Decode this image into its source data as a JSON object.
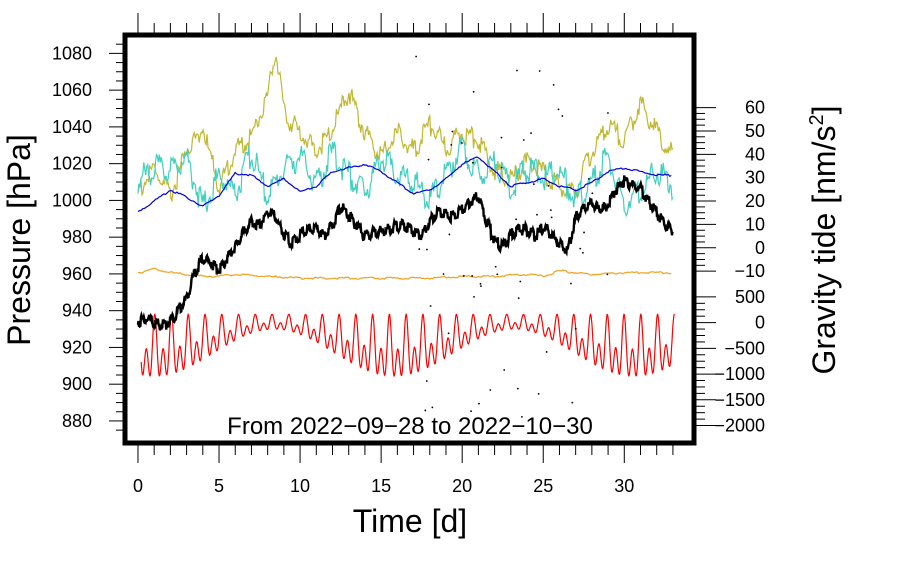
{
  "chart_data": {
    "type": "line",
    "title": "",
    "annotation": "From 2022−09−28 to 2022−10−30",
    "xlabel": "Time [d]",
    "ylabel_left": "Pressure [hPa]",
    "ylabel_right_main": "Gravity tide [nm/s",
    "ylabel_right_sup": "2",
    "ylabel_right_end": "]",
    "xlim": [
      -0.8,
      34.3
    ],
    "ylim_left": [
      868,
      1090
    ],
    "x_ticks": [
      0,
      5,
      10,
      15,
      20,
      25,
      30
    ],
    "x_tick_labels": [
      "0",
      "5",
      "10",
      "15",
      "20",
      "25",
      "30"
    ],
    "left_ticks": [
      880,
      900,
      920,
      940,
      960,
      980,
      1000,
      1020,
      1040,
      1060,
      1080
    ],
    "left_tick_labels": [
      "880",
      "900",
      "920",
      "940",
      "960",
      "980",
      "1000",
      "1020",
      "1040",
      "1060",
      "1080"
    ],
    "right_upper_scale": {
      "range": [
        -10,
        60
      ],
      "pressure_equivalent": [
        961.5,
        1050.5
      ],
      "ticks": [
        -10,
        0,
        10,
        20,
        30,
        40,
        50,
        60
      ],
      "tick_labels": [
        "−10",
        "0",
        "10",
        "20",
        "30",
        "40",
        "50",
        "60"
      ]
    },
    "right_lower_scale": {
      "range": [
        -2000,
        500
      ],
      "pressure_equivalent": [
        877.5,
        947.5
      ],
      "ticks": [
        -2000,
        -1500,
        -1000,
        -500,
        0,
        500
      ],
      "tick_labels": [
        "−2000",
        "−1500",
        "−1000",
        "−500",
        "0",
        "500"
      ]
    },
    "series": [
      {
        "name": "pressure",
        "color": "#000000",
        "axis": "left",
        "x": [
          0,
          0.5,
          1,
          1.5,
          2,
          2.5,
          3,
          3.5,
          4,
          4.5,
          5,
          5.5,
          6,
          6.5,
          7,
          7.5,
          8,
          8.5,
          9,
          9.5,
          10,
          10.5,
          11,
          11.5,
          12,
          12.5,
          13,
          13.5,
          14,
          14.5,
          15,
          15.5,
          16,
          16.5,
          17,
          17.5,
          18,
          18.5,
          19,
          19.5,
          20,
          20.5,
          21,
          21.5,
          22,
          22.5,
          23,
          23.5,
          24,
          24.5,
          25,
          25.5,
          26,
          26.5,
          27,
          27.5,
          28,
          28.5,
          29,
          29.5,
          30,
          30.5,
          31,
          31.5,
          32,
          32.5,
          33
        ],
        "values": [
          936,
          937,
          935,
          933,
          936,
          942,
          948,
          962,
          970,
          968,
          963,
          970,
          976,
          984,
          990,
          988,
          996,
          992,
          983,
          978,
          983,
          986,
          986,
          982,
          988,
          998,
          994,
          988,
          982,
          984,
          985,
          986,
          988,
          988,
          984,
          983,
          990,
          996,
          994,
          992,
          997,
          1001,
          1004,
          990,
          980,
          976,
          983,
          985,
          986,
          982,
          987,
          983,
          978,
          974,
          992,
          997,
          1000,
          996,
          999,
          1008,
          1012,
          1010,
          1008,
          1001,
          995,
          988,
          985
        ]
      },
      {
        "name": "gravity-blue",
        "color": "#0000dd",
        "axis": "left",
        "x": [
          0,
          1,
          2,
          3,
          4,
          5,
          6,
          7,
          8,
          9,
          10,
          11,
          12,
          13,
          14,
          15,
          16,
          17,
          18,
          19,
          20,
          21,
          22,
          23,
          24,
          25,
          26,
          27,
          28,
          29,
          30,
          31,
          32,
          33
        ],
        "values": [
          994,
          1000,
          1006,
          1002,
          997,
          1003,
          1015,
          1014,
          1008,
          1012,
          1005,
          1008,
          1016,
          1018,
          1020,
          1016,
          1010,
          1004,
          1006,
          1012,
          1020,
          1024,
          1016,
          1008,
          1010,
          1012,
          1008,
          1006,
          1010,
          1016,
          1018,
          1016,
          1014,
          1014
        ]
      },
      {
        "name": "cyan",
        "color": "#40d0c0",
        "axis": "left",
        "x": [
          0,
          1,
          2,
          3,
          4,
          5,
          6,
          7,
          8,
          9,
          10,
          11,
          12,
          13,
          14,
          15,
          16,
          17,
          18,
          19,
          20,
          21,
          22,
          23,
          24,
          25,
          26,
          27,
          28,
          29,
          30,
          31,
          32,
          33
        ],
        "values": [
          1014,
          1022,
          1020,
          1028,
          1000,
          1018,
          1008,
          1030,
          1006,
          1022,
          1028,
          1012,
          1030,
          1018,
          1008,
          1028,
          1018,
          1014,
          1004,
          1018,
          1034,
          1018,
          1026,
          1010,
          1022,
          1016,
          1020,
          1004,
          1014,
          1028,
          1002,
          1010,
          1020,
          1012
        ]
      },
      {
        "name": "olive",
        "color": "#c0b830",
        "axis": "left",
        "x": [
          0,
          1,
          2,
          3,
          4,
          5,
          6,
          7,
          8,
          8.5,
          9,
          10,
          11,
          12,
          13,
          14,
          15,
          16,
          17,
          18,
          19,
          20,
          21,
          22,
          23,
          24,
          25,
          26,
          27,
          28,
          29,
          30,
          31,
          32,
          33
        ],
        "values": [
          1008,
          1020,
          1005,
          1030,
          1042,
          1010,
          1030,
          1038,
          1060,
          1086,
          1050,
          1040,
          1030,
          1042,
          1062,
          1040,
          1026,
          1040,
          1030,
          1044,
          1032,
          1040,
          1036,
          1020,
          1014,
          1024,
          1018,
          1010,
          1008,
          1030,
          1044,
          1036,
          1056,
          1040,
          1028
        ]
      },
      {
        "name": "orange",
        "color": "#f0a020",
        "axis": "left",
        "x": [
          0,
          1,
          2,
          3,
          4,
          5,
          6,
          8,
          10,
          12,
          14,
          16,
          18,
          20,
          22,
          24,
          25,
          26,
          28,
          30,
          32,
          33
        ],
        "values": [
          961,
          963,
          961,
          960,
          959,
          959,
          960,
          959,
          958,
          958,
          958,
          958,
          958,
          959,
          959,
          960,
          959,
          962,
          960,
          961,
          961,
          961
        ]
      },
      {
        "name": "tide-red",
        "color": "#ff0000",
        "axis": "left",
        "center": 934,
        "amp_max": 21,
        "amp_min": 5,
        "period_days": 0.517,
        "x_range": [
          0.2,
          33.1
        ]
      }
    ]
  }
}
